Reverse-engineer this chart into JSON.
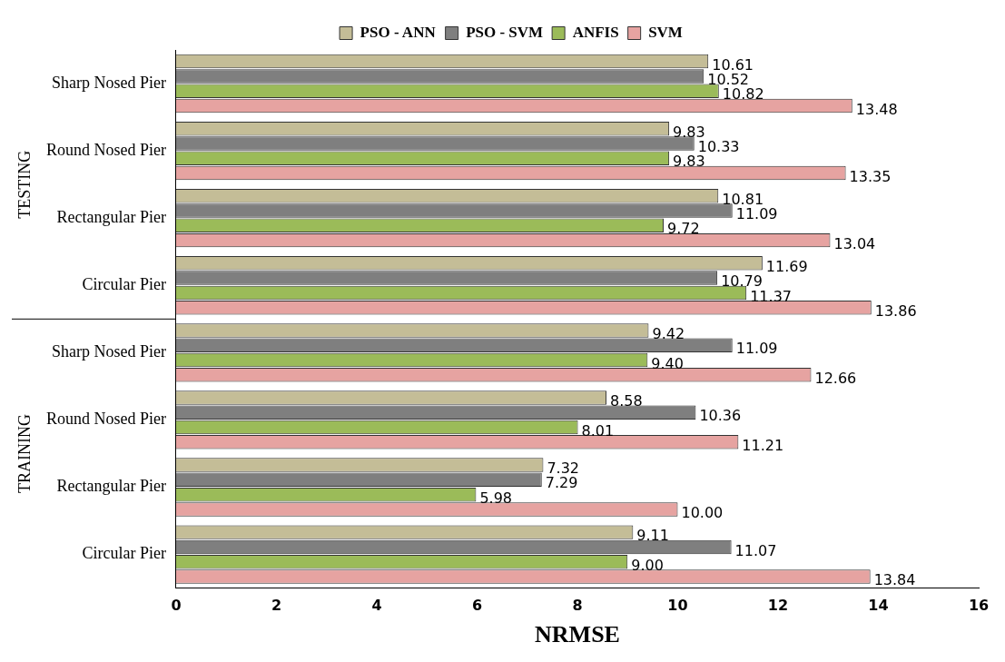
{
  "chart_data": {
    "type": "bar",
    "orientation": "horizontal",
    "xlabel": "NRMSE",
    "categories": [
      "Sharp Nosed Pier",
      "Round Nosed Pier",
      "Rectangular Pier",
      "Circular Pier",
      "Sharp Nosed Pier",
      "Round Nosed Pier",
      "Rectangular Pier",
      "Circular Pier"
    ],
    "series": [
      {
        "name": "PSO - ANN",
        "color": "#c4bd97",
        "values": [
          10.61,
          9.83,
          10.81,
          11.69,
          9.42,
          8.58,
          7.32,
          9.11
        ],
        "value_labels": [
          "10.61",
          "9.83",
          "10.81",
          "11.69",
          "9.42",
          "8.58",
          "7.32",
          "9.11"
        ]
      },
      {
        "name": "PSO - SVM",
        "color": "#7f7f7f",
        "values": [
          10.52,
          10.33,
          11.09,
          10.79,
          11.09,
          10.36,
          7.29,
          11.07
        ],
        "value_labels": [
          "10.52",
          "10.33",
          "11.09",
          "10.79",
          "11.09",
          "10.36",
          "7.29",
          "11.07"
        ]
      },
      {
        "name": "ANFIS",
        "color": "#9bbb59",
        "values": [
          10.82,
          9.83,
          9.72,
          11.37,
          9.4,
          8.01,
          5.98,
          9.0
        ],
        "value_labels": [
          "10.82",
          "9.83",
          "9.72",
          "11.37",
          "9.40",
          "8.01",
          "5.98",
          "9.00"
        ]
      },
      {
        "name": "SVM",
        "color": "#e6a3a1",
        "values": [
          13.48,
          13.35,
          13.04,
          13.86,
          12.66,
          11.21,
          10.0,
          13.84
        ],
        "value_labels": [
          "13.48",
          "13.35",
          "13.04",
          "13.86",
          "12.66",
          "11.21",
          "10.00",
          "13.84"
        ]
      }
    ],
    "annotations": [
      "TESTING",
      "TRAINING"
    ],
    "xlim": [
      0,
      16
    ],
    "xticks": [
      0,
      2,
      4,
      6,
      8,
      10,
      12,
      14,
      16
    ],
    "grid": false,
    "legend": "top"
  }
}
